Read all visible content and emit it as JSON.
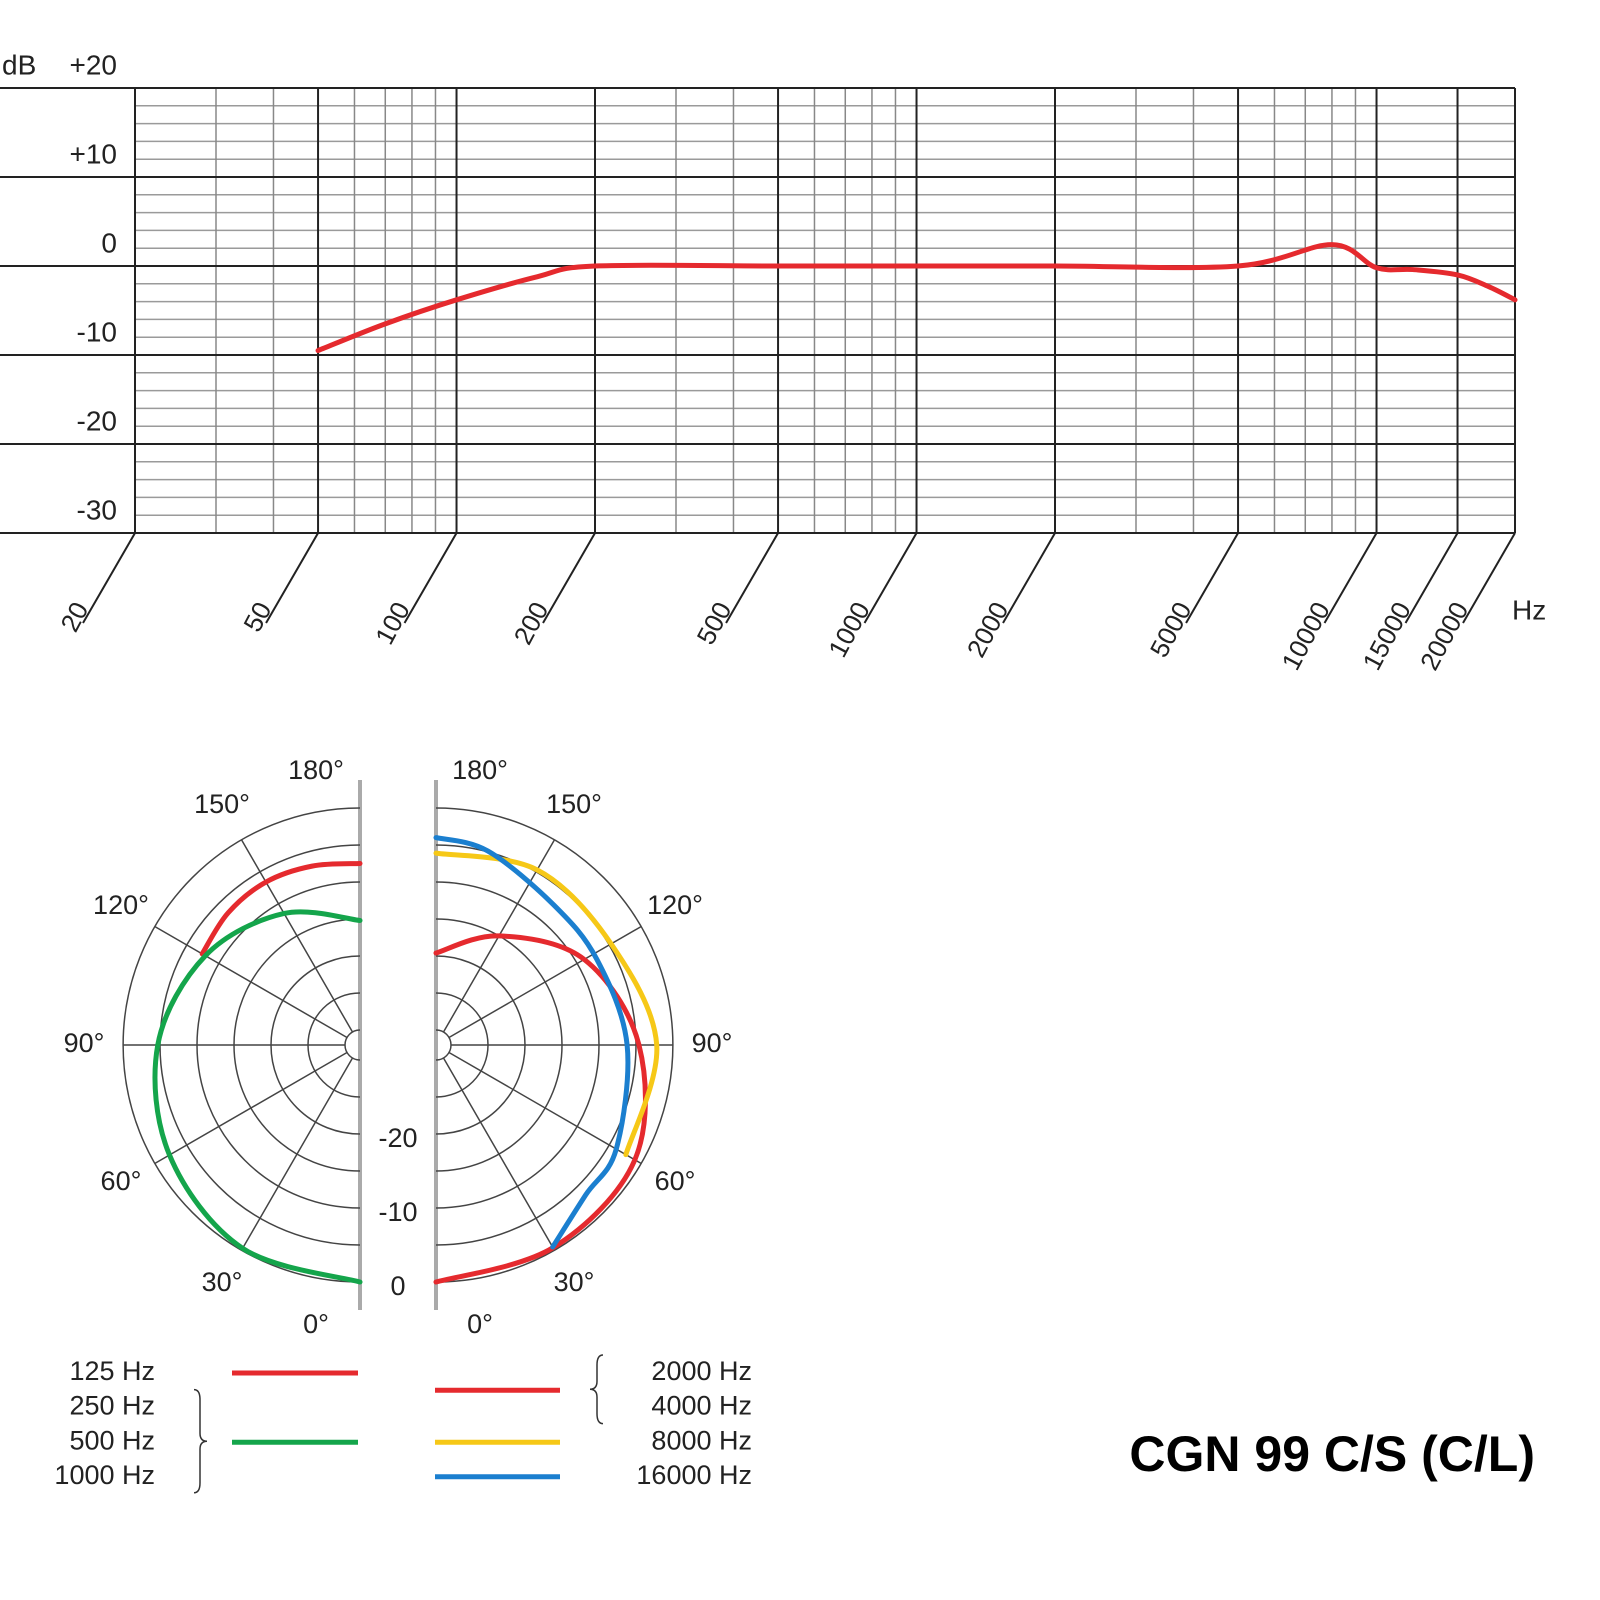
{
  "chart_data": [
    {
      "type": "line",
      "y_label": "dB",
      "x_label": "Hz",
      "log_x": true,
      "grid": true,
      "xlim": [
        20,
        20000
      ],
      "xticks": [
        20,
        50,
        100,
        200,
        500,
        1000,
        2000,
        5000,
        10000,
        15000,
        20000
      ],
      "ylim": [
        -30,
        20
      ],
      "yticks": [
        -30,
        -20,
        -10,
        0,
        {
          "value": 10,
          "label": "+10"
        },
        {
          "value": 20,
          "label": "+20"
        }
      ],
      "series": [
        {
          "color": "#e52a2e",
          "x": [
            50,
            70,
            100,
            150,
            200,
            500,
            1000,
            2000,
            5000,
            8000,
            10000,
            12000,
            15000,
            17500,
            20000
          ],
          "values": [
            -9.5,
            -6.5,
            -3.8,
            -1.2,
            0,
            0,
            0,
            0,
            0,
            2.4,
            -0.2,
            -0.4,
            -1,
            -2.3,
            -3.8
          ]
        }
      ]
    },
    {
      "type": "polar",
      "title": "CGN 99 C/S (C/L)",
      "thetalim": [
        0,
        180
      ],
      "thetaticks": [
        {
          "value": 0,
          "label": "0°"
        },
        {
          "value": 30,
          "label": "30°"
        },
        {
          "value": 60,
          "label": "60°"
        },
        {
          "value": 90,
          "label": "90°"
        },
        {
          "value": 120,
          "label": "120°"
        },
        {
          "value": 150,
          "label": "150°"
        },
        {
          "value": 180,
          "label": "180°"
        }
      ],
      "rlim": [
        -30,
        0
      ],
      "rticks": [
        -20,
        -10,
        0
      ],
      "series": [
        {
          "labels": [
            "125 Hz"
          ],
          "side": "left",
          "color": "#e52a2e",
          "theta": [
            120,
            135,
            150,
            165,
            180
          ],
          "values": [
            -7.4,
            -6.8,
            -6.6,
            -7,
            -7.5
          ]
        },
        {
          "labels": [
            "250 Hz",
            "500 Hz",
            "1000 Hz"
          ],
          "side": "left",
          "color": "#14a54b",
          "theta": [
            0,
            30,
            60,
            90,
            120,
            150,
            180
          ],
          "values": [
            0,
            -0.3,
            -2.3,
            -4.7,
            -7.9,
            -11.5,
            -15.2
          ]
        },
        {
          "labels": [
            "2000 Hz",
            "4000 Hz"
          ],
          "side": "right",
          "color": "#e52a2e",
          "theta": [
            0,
            30,
            60,
            90,
            120,
            150,
            180
          ],
          "values": [
            0,
            -0.4,
            -1,
            -4.6,
            -8.9,
            -15,
            -19.6
          ]
        },
        {
          "labels": [
            "8000 Hz"
          ],
          "side": "right",
          "color": "#f6c817",
          "theta": [
            60,
            90,
            120,
            150,
            180
          ],
          "values": [
            -2.4,
            -2.2,
            -4.7,
            -4.7,
            -6.1
          ]
        },
        {
          "labels": [
            "16000 Hz"
          ],
          "side": "right",
          "color": "#1b7fcf",
          "theta": [
            30,
            45,
            60,
            90,
            118,
            140,
            165,
            180
          ],
          "values": [
            -0.5,
            -3.4,
            -3.9,
            -6.2,
            -7.4,
            -7.3,
            -4.9,
            -4
          ]
        }
      ]
    }
  ]
}
